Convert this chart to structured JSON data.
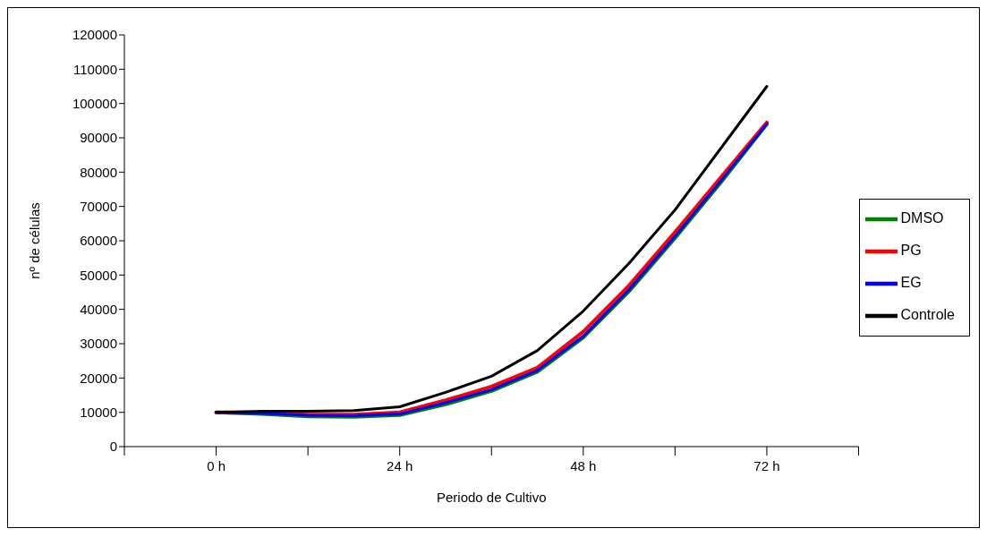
{
  "chart_data": {
    "type": "line",
    "xlabel": "Periodo de Cultivo",
    "ylabel": "nº de células",
    "x": [
      0,
      6,
      12,
      18,
      24,
      30,
      36,
      42,
      48,
      54,
      60,
      66,
      72
    ],
    "xlim": [
      -12,
      84
    ],
    "xticks": [
      {
        "value": -12,
        "label": null
      },
      {
        "value": 0,
        "label": "0 h"
      },
      {
        "value": 12,
        "label": null
      },
      {
        "value": 24,
        "label": "24 h"
      },
      {
        "value": 36,
        "label": null
      },
      {
        "value": 48,
        "label": "48 h"
      },
      {
        "value": 60,
        "label": null
      },
      {
        "value": 72,
        "label": "72 h"
      },
      {
        "value": 84,
        "label": null
      }
    ],
    "ylim": [
      0,
      120000
    ],
    "yticks": [
      0,
      10000,
      20000,
      30000,
      40000,
      50000,
      60000,
      70000,
      80000,
      90000,
      100000,
      110000,
      120000
    ],
    "series": [
      {
        "name": "DMSO",
        "color": "#008000",
        "values": [
          10000,
          9500,
          8800,
          8700,
          9200,
          12300,
          16200,
          21800,
          31800,
          45300,
          60800,
          77000,
          94000
        ]
      },
      {
        "name": "PG",
        "color": "#ff0000",
        "values": [
          10000,
          9900,
          9300,
          9300,
          10000,
          13500,
          17500,
          23000,
          33500,
          47000,
          62500,
          78500,
          94500
        ]
      },
      {
        "name": "EG",
        "color": "#0000ff",
        "values": [
          10000,
          9700,
          9100,
          9000,
          9500,
          12800,
          16600,
          22200,
          32200,
          45800,
          61300,
          77500,
          94000
        ]
      },
      {
        "name": "Controle",
        "color": "#000000",
        "values": [
          10000,
          10300,
          10300,
          10500,
          11600,
          15800,
          20500,
          28000,
          39500,
          53500,
          69000,
          87000,
          105000
        ]
      }
    ],
    "grid": false,
    "legend": "right",
    "marker": "none",
    "line_style": "solid"
  }
}
